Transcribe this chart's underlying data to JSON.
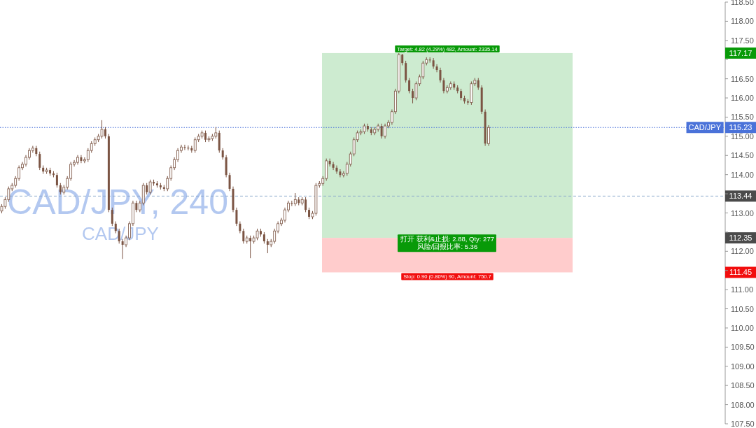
{
  "chart_data": {
    "type": "candlestick",
    "title": "CAD/JPY, 240",
    "subtitle": "CAD/JPY",
    "color": "#7b5443",
    "categories": [
      null,
      null,
      null,
      null,
      null,
      null,
      null,
      null,
      null,
      null,
      null,
      null,
      null,
      null,
      null,
      null,
      null,
      null,
      null,
      null,
      null,
      null,
      null,
      null,
      null,
      null,
      null,
      null,
      null,
      null,
      null,
      null,
      null,
      null,
      null,
      null,
      null,
      null,
      null,
      null,
      null,
      null,
      null,
      null,
      null,
      null,
      null,
      null,
      null,
      null,
      null,
      null,
      null,
      null,
      null,
      null,
      null,
      null,
      null,
      null,
      null,
      null,
      null,
      null,
      null,
      null,
      null,
      null,
      null,
      null,
      null,
      null,
      null,
      null,
      null,
      null,
      null,
      null,
      null,
      null,
      null,
      null,
      null,
      null,
      null,
      null,
      null,
      null,
      null,
      null,
      null,
      null,
      null,
      null,
      null,
      null,
      null,
      null,
      null,
      null,
      null,
      null,
      null,
      null,
      null,
      null,
      null,
      null,
      null,
      null,
      null,
      null,
      null,
      null,
      null,
      null,
      null,
      null,
      null,
      null,
      null,
      null,
      null,
      null,
      null,
      null,
      null,
      null,
      null,
      null,
      null,
      null,
      null,
      null,
      null,
      null,
      null,
      null,
      null,
      null,
      null,
      null,
      null,
      null,
      null,
      null,
      null,
      null,
      null,
      null,
      null,
      null,
      null,
      null,
      null,
      null,
      null,
      null,
      null,
      null,
      null,
      null,
      null,
      null,
      null,
      null,
      null,
      null,
      null,
      null,
      null,
      null,
      null,
      null,
      null,
      null,
      null,
      null,
      null,
      null,
      null,
      null,
      null,
      null,
      null,
      null,
      null,
      null,
      null,
      null,
      null,
      null,
      null,
      null,
      null,
      null,
      null,
      null,
      null,
      null,
      null,
      null,
      null,
      null,
      null,
      null,
      null,
      null,
      null,
      null
    ],
    "ohlc": [
      [
        113.05,
        113.23,
        112.99,
        113.17
      ],
      [
        113.17,
        113.41,
        113.11,
        113.35
      ],
      [
        113.35,
        113.69,
        113.29,
        113.63
      ],
      [
        113.63,
        113.78,
        113.57,
        113.72
      ],
      [
        113.72,
        113.96,
        113.66,
        113.9
      ],
      [
        113.9,
        114.24,
        113.84,
        114.18
      ],
      [
        114.18,
        114.33,
        114.12,
        114.27
      ],
      [
        114.27,
        114.51,
        114.21,
        114.45
      ],
      [
        114.45,
        114.69,
        114.39,
        114.63
      ],
      [
        114.63,
        114.75,
        114.57,
        114.69
      ],
      [
        114.69,
        114.75,
        114.48,
        114.54
      ],
      [
        114.54,
        114.6,
        114.12,
        114.18
      ],
      [
        114.18,
        114.24,
        114.02,
        114.08
      ],
      [
        114.08,
        114.18,
        114.02,
        114.12
      ],
      [
        114.12,
        114.18,
        113.97,
        114.03
      ],
      [
        114.03,
        114.09,
        113.93,
        113.99
      ],
      [
        113.99,
        114.05,
        113.66,
        113.72
      ],
      [
        113.72,
        113.78,
        113.48,
        113.54
      ],
      [
        113.54,
        113.73,
        113.48,
        113.67
      ],
      [
        113.67,
        113.96,
        113.61,
        113.9
      ],
      [
        113.9,
        114.33,
        113.84,
        114.27
      ],
      [
        114.27,
        114.38,
        114.21,
        114.32
      ],
      [
        114.32,
        114.51,
        114.26,
        114.45
      ],
      [
        114.45,
        114.51,
        114.3,
        114.36
      ],
      [
        114.36,
        114.45,
        114.3,
        114.39
      ],
      [
        114.39,
        114.69,
        114.33,
        114.63
      ],
      [
        114.63,
        114.87,
        114.57,
        114.81
      ],
      [
        114.81,
        114.97,
        114.75,
        114.91
      ],
      [
        114.91,
        115.06,
        114.85,
        115.0
      ],
      [
        115.0,
        115.42,
        114.94,
        115.18
      ],
      [
        115.18,
        115.24,
        114.94,
        115.0
      ],
      [
        115.0,
        115.06,
        113.02,
        113.08
      ],
      [
        113.08,
        113.14,
        112.66,
        112.72
      ],
      [
        112.72,
        112.78,
        112.47,
        112.53
      ],
      [
        112.53,
        112.59,
        112.2,
        112.26
      ],
      [
        112.26,
        112.32,
        111.8,
        112.17
      ],
      [
        112.17,
        112.41,
        112.11,
        112.35
      ],
      [
        112.35,
        112.78,
        112.29,
        112.72
      ],
      [
        112.72,
        113.32,
        112.66,
        113.26
      ],
      [
        113.26,
        113.32,
        113.02,
        113.08
      ],
      [
        113.08,
        113.32,
        113.02,
        113.26
      ],
      [
        113.26,
        113.78,
        113.2,
        113.72
      ],
      [
        113.72,
        113.78,
        113.48,
        113.54
      ],
      [
        113.54,
        113.87,
        113.48,
        113.81
      ],
      [
        113.81,
        113.87,
        113.71,
        113.77
      ],
      [
        113.77,
        113.83,
        113.66,
        113.72
      ],
      [
        113.72,
        113.78,
        113.61,
        113.67
      ],
      [
        113.67,
        113.73,
        113.57,
        113.63
      ],
      [
        113.63,
        113.96,
        113.57,
        113.9
      ],
      [
        113.9,
        114.24,
        113.84,
        114.18
      ],
      [
        114.18,
        114.45,
        114.12,
        114.39
      ],
      [
        114.39,
        114.69,
        114.33,
        114.63
      ],
      [
        114.63,
        114.78,
        114.57,
        114.72
      ],
      [
        114.72,
        114.78,
        114.64,
        114.7
      ],
      [
        114.7,
        114.76,
        114.63,
        114.69
      ],
      [
        114.69,
        114.75,
        114.57,
        114.63
      ],
      [
        114.63,
        114.97,
        114.57,
        114.91
      ],
      [
        114.91,
        115.06,
        114.85,
        115.0
      ],
      [
        115.0,
        115.15,
        114.94,
        115.09
      ],
      [
        115.09,
        115.15,
        114.85,
        114.91
      ],
      [
        114.91,
        115.0,
        114.85,
        114.94
      ],
      [
        114.94,
        115.06,
        114.88,
        115.0
      ],
      [
        115.0,
        115.24,
        114.94,
        115.09
      ],
      [
        115.09,
        115.15,
        114.57,
        114.63
      ],
      [
        114.63,
        114.69,
        114.39,
        114.45
      ],
      [
        114.45,
        114.51,
        113.93,
        113.99
      ],
      [
        113.99,
        114.05,
        113.57,
        113.63
      ],
      [
        113.63,
        113.69,
        113.02,
        113.08
      ],
      [
        113.08,
        113.14,
        112.66,
        112.72
      ],
      [
        112.72,
        112.78,
        112.47,
        112.53
      ],
      [
        112.53,
        112.59,
        112.2,
        112.26
      ],
      [
        112.26,
        112.41,
        112.2,
        112.35
      ],
      [
        112.35,
        112.41,
        111.82,
        112.26
      ],
      [
        112.26,
        112.41,
        112.2,
        112.35
      ],
      [
        112.35,
        112.59,
        112.29,
        112.53
      ],
      [
        112.53,
        112.59,
        112.38,
        112.44
      ],
      [
        112.44,
        112.5,
        112.2,
        112.26
      ],
      [
        112.26,
        112.32,
        111.95,
        112.17
      ],
      [
        112.17,
        112.32,
        112.11,
        112.26
      ],
      [
        112.26,
        112.59,
        112.2,
        112.53
      ],
      [
        112.53,
        112.78,
        112.47,
        112.72
      ],
      [
        112.72,
        112.87,
        112.66,
        112.81
      ],
      [
        112.81,
        113.14,
        112.75,
        113.08
      ],
      [
        113.08,
        113.32,
        113.02,
        113.26
      ],
      [
        113.26,
        113.32,
        113.18,
        113.24
      ],
      [
        113.24,
        113.52,
        113.18,
        113.35
      ],
      [
        113.35,
        113.41,
        113.2,
        113.26
      ],
      [
        113.26,
        113.41,
        113.2,
        113.35
      ],
      [
        113.35,
        113.41,
        113.02,
        113.08
      ],
      [
        113.08,
        113.14,
        112.84,
        112.9
      ],
      [
        112.9,
        113.05,
        112.84,
        112.99
      ],
      [
        112.99,
        113.78,
        112.93,
        113.72
      ],
      [
        113.72,
        113.83,
        113.66,
        113.77
      ],
      [
        113.77,
        113.96,
        113.71,
        113.9
      ],
      [
        113.9,
        114.42,
        113.84,
        114.36
      ],
      [
        114.36,
        114.42,
        114.21,
        114.27
      ],
      [
        114.27,
        114.33,
        114.12,
        114.18
      ],
      [
        114.18,
        114.24,
        114.02,
        114.08
      ],
      [
        114.08,
        114.14,
        113.93,
        113.99
      ],
      [
        113.99,
        114.09,
        113.93,
        114.03
      ],
      [
        114.03,
        114.33,
        113.97,
        114.27
      ],
      [
        114.27,
        114.6,
        114.21,
        114.54
      ],
      [
        114.54,
        114.97,
        114.48,
        114.91
      ],
      [
        114.91,
        115.15,
        114.85,
        115.09
      ],
      [
        115.09,
        115.18,
        115.03,
        115.12
      ],
      [
        115.12,
        115.33,
        115.06,
        115.27
      ],
      [
        115.27,
        115.33,
        115.12,
        115.18
      ],
      [
        115.18,
        115.24,
        115.03,
        115.09
      ],
      [
        115.09,
        115.24,
        115.03,
        115.18
      ],
      [
        115.18,
        115.33,
        115.12,
        115.27
      ],
      [
        115.27,
        115.33,
        114.94,
        115.0
      ],
      [
        115.0,
        115.33,
        114.94,
        115.27
      ],
      [
        115.27,
        115.42,
        115.21,
        115.36
      ],
      [
        115.36,
        115.7,
        115.3,
        115.64
      ],
      [
        115.64,
        116.24,
        115.58,
        116.18
      ],
      [
        116.18,
        117.17,
        116.12,
        117.13
      ],
      [
        117.13,
        117.15,
        116.85,
        116.91
      ],
      [
        116.91,
        116.97,
        116.4,
        116.46
      ],
      [
        116.46,
        116.52,
        116.12,
        116.18
      ],
      [
        116.18,
        116.24,
        115.86,
        116.0
      ],
      [
        116.0,
        116.43,
        115.94,
        116.37
      ],
      [
        116.37,
        116.61,
        116.31,
        116.55
      ],
      [
        116.55,
        116.97,
        116.49,
        116.91
      ],
      [
        116.91,
        117.06,
        116.85,
        117.0
      ],
      [
        117.0,
        117.06,
        116.92,
        116.98
      ],
      [
        116.98,
        117.04,
        116.76,
        116.82
      ],
      [
        116.82,
        116.88,
        116.67,
        116.73
      ],
      [
        116.73,
        116.79,
        116.4,
        116.46
      ],
      [
        116.46,
        116.52,
        116.12,
        116.18
      ],
      [
        116.18,
        116.33,
        116.12,
        116.27
      ],
      [
        116.27,
        116.43,
        116.21,
        116.37
      ],
      [
        116.37,
        116.43,
        116.21,
        116.27
      ],
      [
        116.27,
        116.33,
        116.12,
        116.18
      ],
      [
        116.18,
        116.24,
        115.94,
        116.0
      ],
      [
        116.0,
        116.06,
        115.85,
        115.91
      ],
      [
        115.91,
        115.97,
        115.82,
        115.88
      ],
      [
        115.88,
        116.43,
        115.82,
        116.37
      ],
      [
        116.37,
        116.52,
        116.31,
        116.46
      ],
      [
        116.46,
        116.52,
        116.21,
        116.27
      ],
      [
        116.27,
        116.33,
        115.58,
        115.64
      ],
      [
        115.64,
        115.7,
        114.75,
        114.81
      ],
      [
        114.81,
        115.29,
        114.75,
        115.23
      ],
      null,
      null,
      null,
      null,
      null,
      null,
      null,
      null,
      null,
      null,
      null,
      null,
      null,
      null,
      null,
      null,
      null,
      null,
      null,
      null,
      null,
      null,
      null,
      null,
      null,
      null,
      null,
      null,
      null,
      null,
      null,
      null,
      null,
      null,
      null,
      null,
      null,
      null,
      null,
      null,
      null,
      null,
      null,
      null,
      null,
      null,
      null,
      null,
      null,
      null,
      null,
      null,
      null,
      null,
      null,
      null,
      null,
      null,
      null,
      null,
      null,
      null,
      null,
      null,
      null,
      null,
      null,
      null
    ],
    "ylim": [
      107.5,
      118.5
    ],
    "yticks": [
      {
        "value": 107.5,
        "label": "107.50"
      },
      {
        "value": 108,
        "label": "108.00"
      },
      {
        "value": 108.5,
        "label": "108.50"
      },
      {
        "value": 109,
        "label": "109.00"
      },
      {
        "value": 109.5,
        "label": "109.50"
      },
      {
        "value": 110,
        "label": "110.00"
      },
      {
        "value": 110.5,
        "label": "110.50"
      },
      {
        "value": 111,
        "label": "111.00"
      },
      {
        "value": 111.45,
        "label": "111.45"
      },
      {
        "value": 111.5,
        "label": null
      },
      {
        "value": 112,
        "label": "112.00"
      },
      {
        "value": 112.35,
        "label": "112.35"
      },
      {
        "value": 112.5,
        "label": null
      },
      {
        "value": 113,
        "label": "113.00"
      },
      {
        "value": 113.44,
        "label": "113.44"
      },
      {
        "value": 113.5,
        "label": null
      },
      {
        "value": 114,
        "label": "114.00"
      },
      {
        "value": 114.5,
        "label": "114.50"
      },
      {
        "value": 115,
        "label": "115.00"
      },
      {
        "value": 115.23,
        "label": "115.23"
      },
      {
        "value": 115.5,
        "label": "115.50"
      },
      {
        "value": 116,
        "label": "116.00"
      },
      {
        "value": 116.5,
        "label": "116.50"
      },
      {
        "value": 117,
        "label": null
      },
      {
        "value": 117.17,
        "label": "117.17"
      },
      {
        "value": 117.5,
        "label": "117.50"
      },
      {
        "value": 118,
        "label": "118.00"
      },
      {
        "value": 118.5,
        "label": "118.50"
      }
    ],
    "tick_labels": "y",
    "grid": false,
    "ref_lines": [
      {
        "axis": "y",
        "value": 115.23,
        "label": "CAD/JPY",
        "color": "#4a72d9",
        "line_style": "dotted"
      },
      {
        "axis": "y",
        "value": 113.44,
        "label": null,
        "color": "#8aa8cc",
        "line_style": "dashed"
      }
    ],
    "bands": [
      {
        "axis": "y",
        "from": 112.35,
        "to": 117.17,
        "label": "Target: 4.82 (4.29%) 482, Amount: 2335.14",
        "color": "#cdebd0"
      },
      {
        "axis": "y",
        "from": 111.45,
        "to": 112.35,
        "label": "Stop: 0.90 (0.80%) 90, Amount: 750.7",
        "color": "#ffcccc"
      }
    ],
    "annotations": [
      "打开 获利&止损: 2.88, Qty: 277",
      "风险/回报比率: 5.36"
    ]
  }
}
